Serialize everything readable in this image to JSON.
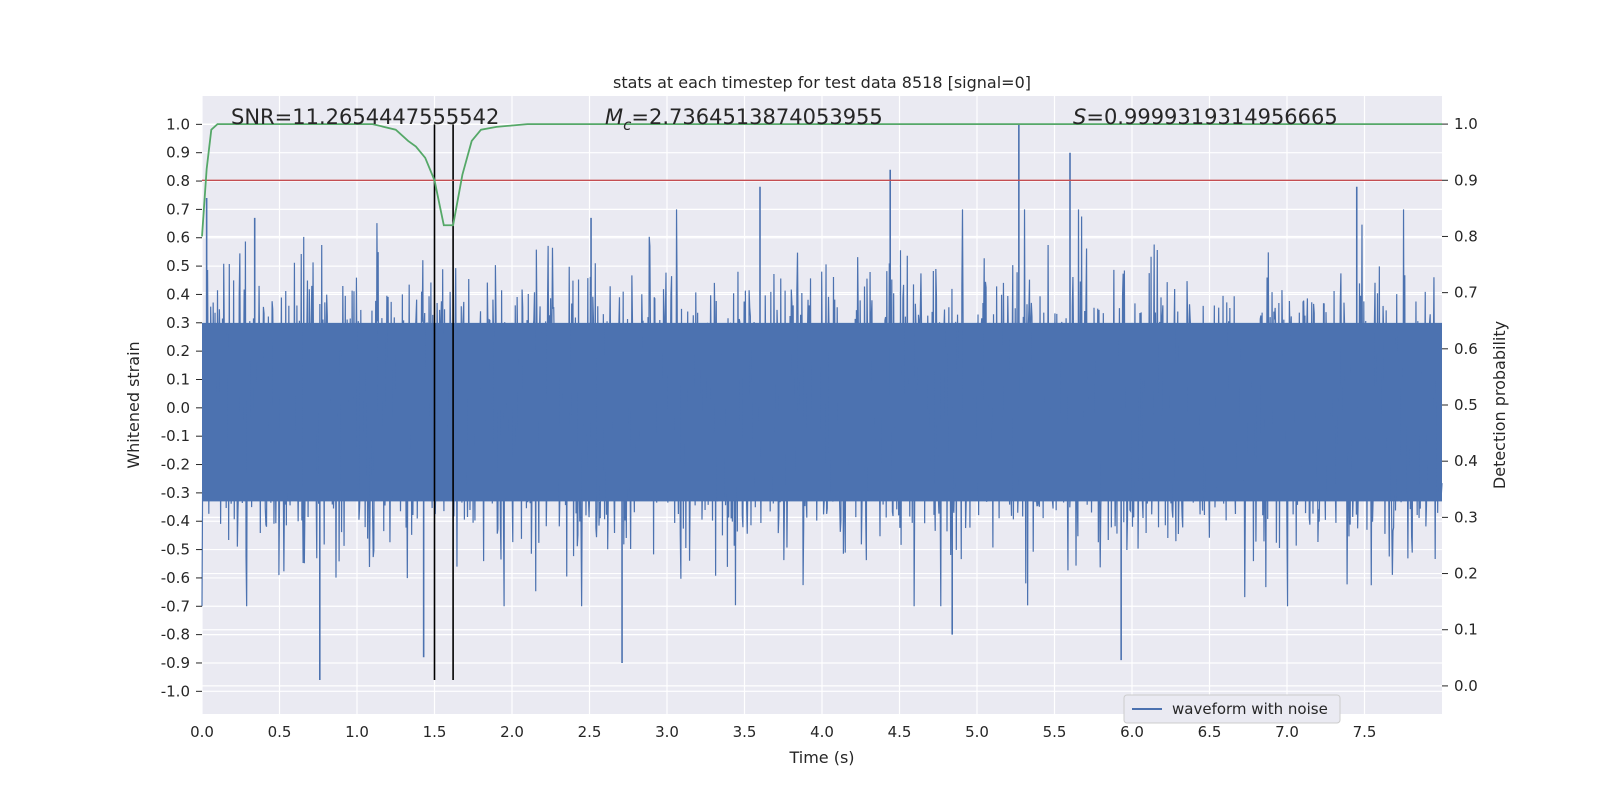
{
  "chart_data": {
    "type": "line",
    "title": "stats at each timestep for test data 8518 [signal=0]",
    "xlabel": "Time (s)",
    "ylabel": "Whitened strain",
    "y2label": "Detection probability",
    "xlim": [
      0.0,
      8.0
    ],
    "ylim": [
      -1.08,
      1.1
    ],
    "y2lim": [
      -0.05,
      1.05
    ],
    "xticks": [
      0.0,
      0.5,
      1.0,
      1.5,
      2.0,
      2.5,
      3.0,
      3.5,
      4.0,
      4.5,
      5.0,
      5.5,
      6.0,
      6.5,
      7.0,
      7.5
    ],
    "xtick_labels": [
      "0.0",
      "0.5",
      "1.0",
      "1.5",
      "2.0",
      "2.5",
      "3.0",
      "3.5",
      "4.0",
      "4.5",
      "5.0",
      "5.5",
      "6.0",
      "6.5",
      "7.0",
      "7.5"
    ],
    "yticks": [
      1.0,
      0.9,
      0.8,
      0.7,
      0.6,
      0.5,
      0.4,
      0.3,
      0.2,
      0.1,
      0.0,
      -0.1,
      -0.2,
      -0.3,
      -0.4,
      -0.5,
      -0.6,
      -0.7,
      -0.8,
      -0.9,
      -1.0
    ],
    "ytick_labels": [
      "1.0",
      "0.9",
      "0.8",
      "0.7",
      "0.6",
      "0.5",
      "0.4",
      "0.3",
      "0.2",
      "0.1",
      "0.0",
      "-0.1",
      "-0.2",
      "-0.3",
      "-0.4",
      "-0.5",
      "-0.6",
      "-0.7",
      "-0.8",
      "-0.9",
      "-1.0"
    ],
    "y2ticks": [
      1.0,
      0.9,
      0.8,
      0.7,
      0.6,
      0.5,
      0.4,
      0.3,
      0.2,
      0.1,
      0.0
    ],
    "y2tick_labels": [
      "1.0",
      "0.9",
      "0.8",
      "0.7",
      "0.6",
      "0.5",
      "0.4",
      "0.3",
      "0.2",
      "0.1",
      "0.0"
    ],
    "annotations": {
      "snr": "SNR=11.2654447555542",
      "mc_symbol": "M",
      "mc_sub": "c",
      "mc_value": "=2.7364513874053955",
      "s_symbol": "S",
      "s_value": "=0.9999319314956665"
    },
    "legend": {
      "label": "waveform with noise",
      "location": "lower-right"
    },
    "series": [
      {
        "name": "waveform with noise",
        "axis": "left",
        "color": "#4c72b0",
        "sample_count": 2000,
        "envelope_typical": [
          -0.45,
          0.42
        ],
        "peaks": [
          {
            "x": 0.03,
            "y": 0.74
          },
          {
            "x": 0.34,
            "y": 0.67
          },
          {
            "x": 0.76,
            "y": -0.96
          },
          {
            "x": 1.43,
            "y": -0.88
          },
          {
            "x": 2.51,
            "y": 0.67
          },
          {
            "x": 2.71,
            "y": -0.9
          },
          {
            "x": 3.6,
            "y": 0.78
          },
          {
            "x": 4.44,
            "y": 0.84
          },
          {
            "x": 4.84,
            "y": -0.8
          },
          {
            "x": 5.27,
            "y": 1.0
          },
          {
            "x": 5.6,
            "y": 0.9
          },
          {
            "x": 5.93,
            "y": -0.89
          },
          {
            "x": 7.45,
            "y": 0.78
          }
        ]
      },
      {
        "name": "detection probability",
        "axis": "right",
        "color": "#55a868",
        "x": [
          0.0,
          0.03,
          0.06,
          0.1,
          0.15,
          0.3,
          0.5,
          0.8,
          1.0,
          1.1,
          1.25,
          1.33,
          1.38,
          1.44,
          1.5,
          1.56,
          1.62,
          1.68,
          1.74,
          1.8,
          1.9,
          2.1,
          2.4,
          2.8,
          3.5,
          4.5,
          5.5,
          6.5,
          7.0,
          7.5,
          8.0
        ],
        "y": [
          0.8,
          0.92,
          0.99,
          1.0,
          1.0,
          1.0,
          1.0,
          1.0,
          1.0,
          1.0,
          0.99,
          0.97,
          0.96,
          0.94,
          0.9,
          0.82,
          0.82,
          0.91,
          0.97,
          0.99,
          0.995,
          1.0,
          1.0,
          1.0,
          1.0,
          1.0,
          1.0,
          1.0,
          1.0,
          1.0,
          1.0
        ]
      }
    ],
    "threshold": {
      "axis": "right",
      "value": 0.9,
      "color": "#c44e52"
    },
    "vlines": [
      {
        "x": 1.5,
        "y_range": [
          -0.96,
          1.0
        ],
        "color": "#000000"
      },
      {
        "x": 1.62,
        "y_range": [
          -0.96,
          1.0
        ],
        "color": "#000000"
      }
    ],
    "colors": {
      "plot_bg": "#eaeaf2",
      "grid": "#ffffff"
    }
  }
}
